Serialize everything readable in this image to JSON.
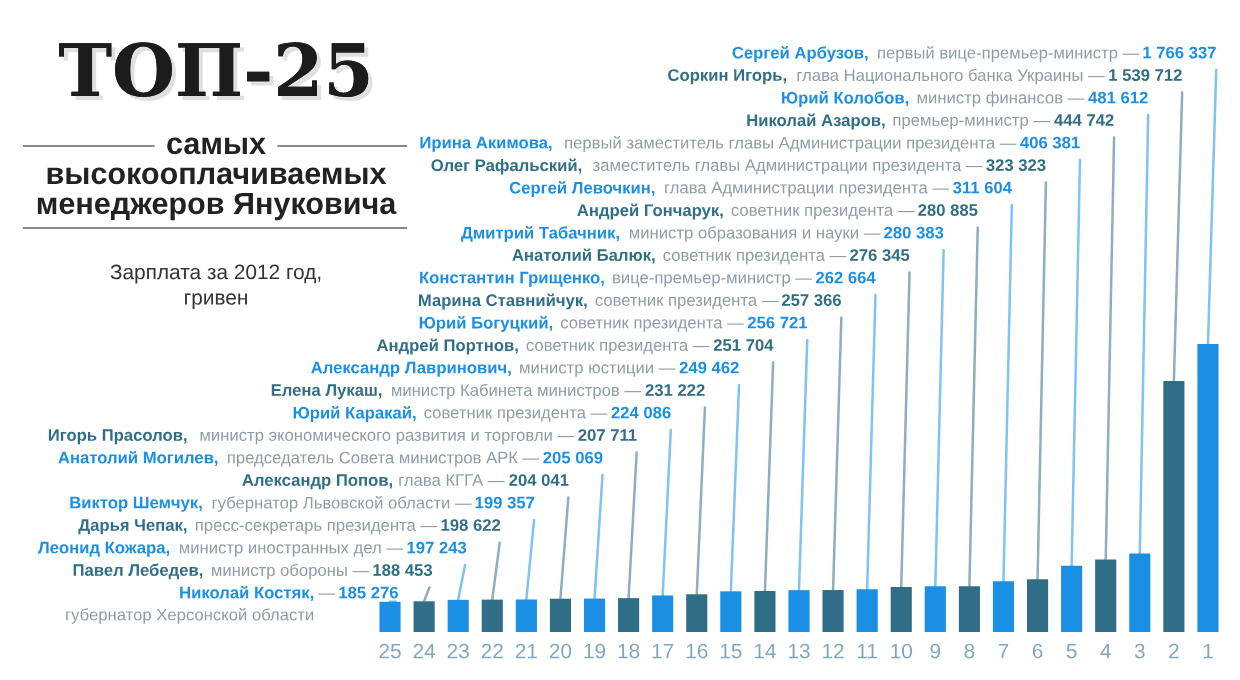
{
  "chart_data": {
    "type": "bar",
    "title": "ТОП-25\nсамых\nвысокооплачиваемых\nменеджеров Януковича",
    "subtitle": "Зарплата за 2012 год,\nгривен",
    "categories": [
      "25",
      "24",
      "23",
      "22",
      "21",
      "20",
      "19",
      "18",
      "17",
      "16",
      "15",
      "14",
      "13",
      "12",
      "11",
      "10",
      "9",
      "8",
      "7",
      "6",
      "5",
      "4",
      "3",
      "2",
      "1"
    ],
    "values": [
      185276,
      188453,
      197243,
      198622,
      199357,
      204041,
      205069,
      207711,
      224086,
      231222,
      249462,
      251704,
      256721,
      257366,
      262664,
      276345,
      280383,
      280885,
      311604,
      323323,
      406381,
      444742,
      481612,
      1539712,
      1766337
    ],
    "colors": [
      "#1a8fe3",
      "#2f6e86",
      "#1a8fe3",
      "#2f6e86",
      "#1a8fe3",
      "#2f6e86",
      "#1a8fe3",
      "#2f6e86",
      "#1a8fe3",
      "#2f6e86",
      "#1a8fe3",
      "#2f6e86",
      "#1a8fe3",
      "#2f6e86",
      "#1a8fe3",
      "#2f6e86",
      "#1a8fe3",
      "#2f6e86",
      "#1a8fe3",
      "#2f6e86",
      "#1a8fe3",
      "#2f6e86",
      "#1a8fe3",
      "#2f6e86",
      "#1a8fe3"
    ],
    "value_labels": [
      "185 276",
      "188 453",
      "197 243",
      "198 622",
      "199 357",
      "204 041",
      "205 069",
      "207 711",
      "224 086",
      "231 222",
      "249 462",
      "251 704",
      "256 721",
      "257 366",
      "262 664",
      "276 345",
      "280 383",
      "280 885",
      "311 604",
      "323 323",
      "406 381",
      "444 742",
      "481 612",
      "1 539 712",
      "1 766 337"
    ],
    "annotations": [
      "Николай Костяк,",
      "—",
      "Павел Лебедев,",
      "министр обороны —",
      "Леонид Кожара,",
      "министр иностранных дел —",
      "Дарья Чепак,",
      "пресс-секретарь президента —",
      "Виктор Шемчук,",
      "губернатор Львовской области —",
      "Александр Попов,",
      "глава КГГА —",
      "Анатолий Могилев,",
      "председатель Совета министров АРК —",
      "Игорь Прасолов,",
      "министр экономического развития и торговли —",
      "Юрий Каракай,",
      "советник президента —",
      "Елена Лукаш,",
      "министр Кабинета министров —",
      "Александр Лавринович,",
      "министр юстиции —",
      "Андрей Портнов,",
      "советник президента —",
      "Юрий Богуцкий,",
      "советник президента —",
      "Марина Ставнийчук,",
      "советник президента —",
      "Константин Грищенко,",
      "вице-премьер-министр —",
      "Анатолий Балюк,",
      "советник президента —",
      "Дмитрий Табачник,",
      "министр образования и науки —",
      "Андрей Гончарук,",
      "советник президента —",
      "Сергей Левочкин,",
      "глава Администрации президента —",
      "Олег Рафальский,",
      "заместитель главы Администрации президента —",
      "Ирина Акимова,",
      "первый заместитель главы Администрации президента —",
      "Николай Азаров,",
      "премьер-министр —",
      "Юрий Колобов,",
      "министр финансов —",
      "Соркин Игорь,",
      "глава Национального банка Украины —",
      "Сергей Арбузов,",
      "первый вице-премьер-министр —",
      "губернатор Херсонской области"
    ]
  }
}
